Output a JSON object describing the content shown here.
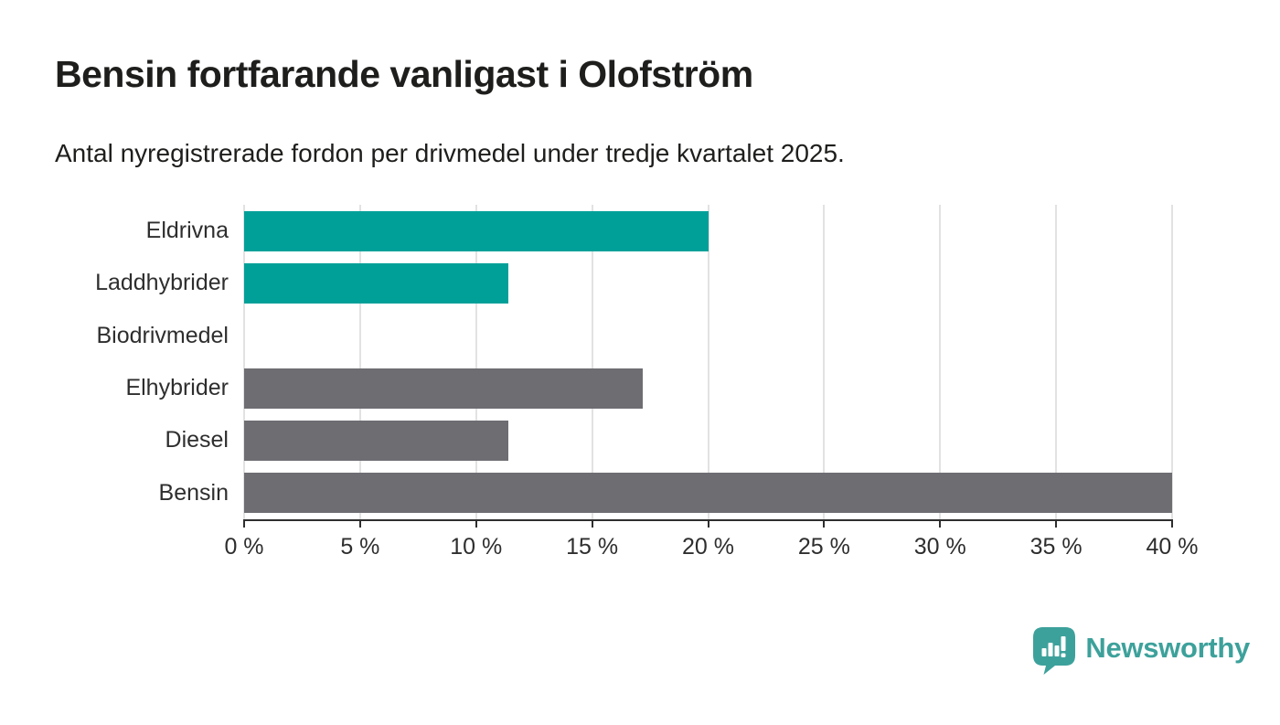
{
  "header": {
    "title": "Bensin fortfarande vanligast i Olofström",
    "subtitle": "Antal nyregistrerade fordon per drivmedel under tredje kvartalet 2025."
  },
  "chart_data": {
    "type": "bar",
    "orientation": "horizontal",
    "title": "Bensin fortfarande vanligast i Olofström",
    "subtitle": "Antal nyregistrerade fordon per drivmedel under tredje kvartalet 2025.",
    "categories": [
      "Eldrivna",
      "Laddhybrider",
      "Biodrivmedel",
      "Elhybrider",
      "Diesel",
      "Bensin"
    ],
    "values": [
      20.0,
      11.4,
      0,
      17.2,
      11.4,
      40.0
    ],
    "unit": "%",
    "xlim": [
      0,
      40
    ],
    "x_ticks": [
      0,
      5,
      10,
      15,
      20,
      25,
      30,
      35,
      40
    ],
    "x_tick_labels": [
      "0 %",
      "5 %",
      "10 %",
      "15 %",
      "20 %",
      "25 %",
      "30 %",
      "35 %",
      "40 %"
    ],
    "bar_colors": [
      "#00a099",
      "#00a099",
      "#00a099",
      "#6e6d72",
      "#6e6d72",
      "#6e6d72"
    ],
    "grid": true,
    "legend": "none",
    "colors": {
      "highlight": "#00a099",
      "default": "#6e6d72",
      "gridline": "#e2e2e2",
      "axis": "#2e2e2e",
      "text": "#2e2e2e"
    }
  },
  "footer": {
    "brand": "Newsworthy",
    "brand_color": "#3da19b",
    "logo_icon": "speech-bubble-bar-chart-icon"
  }
}
